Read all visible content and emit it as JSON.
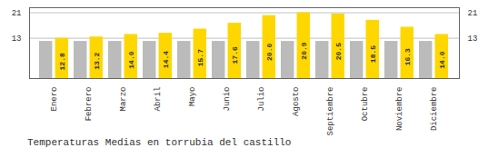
{
  "chart_data": {
    "type": "bar",
    "title": "Temperaturas Medias en torrubia del castillo",
    "categories": [
      "Enero",
      "Febrero",
      "Marzo",
      "Abril",
      "Mayo",
      "Junio",
      "Julio",
      "Agosto",
      "Septiembre",
      "Octubre",
      "Noviembre",
      "Diciembre"
    ],
    "series": [
      {
        "color": "#BBBBBB",
        "values": [
          11.8,
          11.8,
          11.8,
          11.8,
          11.8,
          11.8,
          11.8,
          11.8,
          11.8,
          11.8,
          11.8,
          11.8
        ]
      },
      {
        "color": "#FFD700",
        "values": [
          12.8,
          13.2,
          14.0,
          14.4,
          15.7,
          17.6,
          20.0,
          20.9,
          20.5,
          18.5,
          16.3,
          14.0
        ],
        "value_labels": [
          "12.8",
          "13.2",
          "14.0",
          "14.4",
          "15.7",
          "17.6",
          "20.0",
          "20.9",
          "20.5",
          "18.5",
          "16.3",
          "14.0"
        ],
        "data_labels": true
      }
    ],
    "ylim": [
      0,
      22.5
    ],
    "yticks": [
      12.8,
      20.9
    ],
    "grid": true
  }
}
